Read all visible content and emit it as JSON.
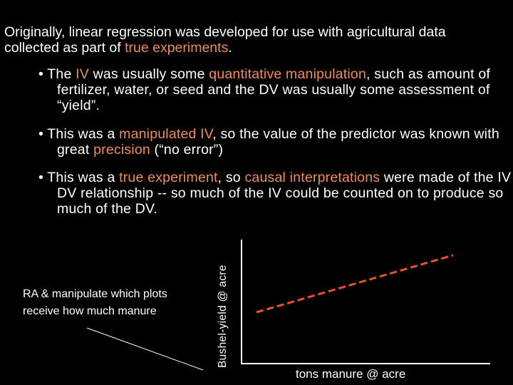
{
  "intro": {
    "part1": "Originally, linear regression was developed for use with agricultural data collected as part of ",
    "highlight": "true experiments",
    "part2": "."
  },
  "bullets": [
    {
      "marker": "•",
      "t1": "The ",
      "h1": "IV",
      "t2": " was usually some ",
      "h2": "quantitative manipulation",
      "t3": ", such as amount of fertilizer, water, or seed and the DV was usually some assessment of “yield”."
    },
    {
      "marker": "•",
      "t1": "This was a ",
      "h1": "manipulated IV",
      "t2": ", so the value of the predictor was known with great ",
      "h2": "precision",
      "t3": " (“no error”)"
    },
    {
      "marker": "•",
      "t1": "This was a ",
      "h1": "true experiment",
      "t2": ", so ",
      "h2": "causal interpretations",
      "t3": " were made of the IV - DV relationship -- so much of the IV could be counted on to produce so much of the DV."
    }
  ],
  "note": "RA & manipulate which plots receive how much manure",
  "graph": {
    "ylabel": "Bushel-yield @ acre",
    "xlabel": "tons manure @ acre"
  },
  "colors": {
    "background": "#000000",
    "text": "#ffffff",
    "highlight": "#f08c5a",
    "regression_line": "#e8542a"
  }
}
